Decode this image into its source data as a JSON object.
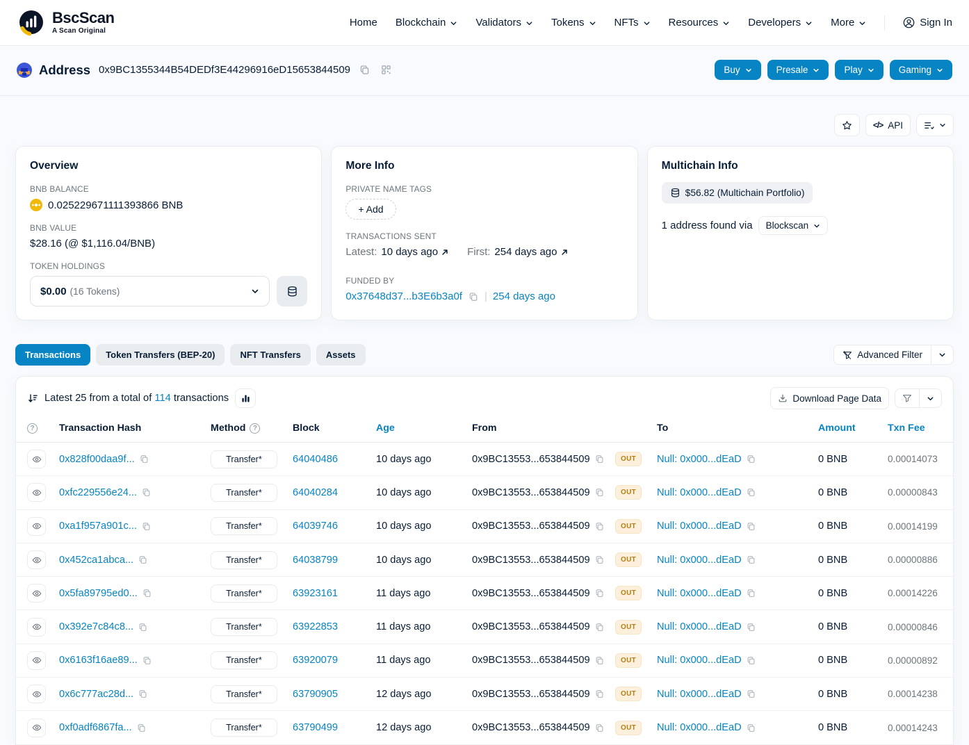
{
  "nav": {
    "brand_name": "BscScan",
    "brand_tagline": "A Scan Original",
    "items": [
      {
        "label": "Home",
        "dropdown": false
      },
      {
        "label": "Blockchain",
        "dropdown": true
      },
      {
        "label": "Validators",
        "dropdown": true
      },
      {
        "label": "Tokens",
        "dropdown": true
      },
      {
        "label": "NFTs",
        "dropdown": true
      },
      {
        "label": "Resources",
        "dropdown": true
      },
      {
        "label": "Developers",
        "dropdown": true
      },
      {
        "label": "More",
        "dropdown": true
      }
    ],
    "sign_in_label": "Sign In"
  },
  "header": {
    "entity_label": "Address",
    "address": "0x9BC1355344B54DEDf3E44296916eD15653844509",
    "action_buttons": [
      "Buy",
      "Presale",
      "Play",
      "Gaming"
    ]
  },
  "page_tools": {
    "api_label": "API"
  },
  "overview_card": {
    "title": "Overview",
    "bnb_balance_label": "BNB BALANCE",
    "bnb_balance": "0.025229671111393866 BNB",
    "bnb_value_label": "BNB VALUE",
    "bnb_value": "$28.16 (@ $1,116.04/BNB)",
    "token_holdings_label": "TOKEN HOLDINGS",
    "token_holdings_value": "$0.00",
    "token_holdings_count": "(16 Tokens)"
  },
  "more_info_card": {
    "title": "More Info",
    "private_tags_label": "PRIVATE NAME TAGS",
    "add_button": "+ Add",
    "transactions_sent_label": "TRANSACTIONS SENT",
    "latest_label": "Latest:",
    "latest_value": "10 days ago",
    "first_label": "First:",
    "first_value": "254 days ago",
    "funded_by_label": "FUNDED BY",
    "funded_by_address": "0x37648d37...b3E6b3a0f",
    "funded_divider": "|",
    "funded_age": "254 days ago"
  },
  "multichain_card": {
    "title": "Multichain Info",
    "portfolio_badge": "$56.82 (Multichain Portfolio)",
    "found_text": "1 address found via",
    "provider": "Blockscan"
  },
  "tabs": [
    {
      "label": "Transactions",
      "active": true
    },
    {
      "label": "Token Transfers (BEP-20)",
      "active": false
    },
    {
      "label": "NFT Transfers",
      "active": false
    },
    {
      "label": "Assets",
      "active": false
    }
  ],
  "filter": {
    "advanced_filter_label": "Advanced Filter"
  },
  "table": {
    "summary_prefix": "Latest 25 from a total of ",
    "summary_count": "114",
    "summary_suffix": " transactions",
    "download_label": "Download Page Data",
    "columns": [
      "Transaction Hash",
      "Method",
      "Block",
      "Age",
      "From",
      "To",
      "Amount",
      "Txn Fee"
    ],
    "rows": [
      {
        "hash": "0x828f00daa9f...",
        "method": "Transfer*",
        "block": "64040486",
        "age": "10 days ago",
        "from": "0x9BC13553...653844509",
        "direction": "OUT",
        "to": "Null: 0x000...dEaD",
        "amount": "0 BNB",
        "fee": "0.00014073"
      },
      {
        "hash": "0xfc229556e24...",
        "method": "Transfer*",
        "block": "64040284",
        "age": "10 days ago",
        "from": "0x9BC13553...653844509",
        "direction": "OUT",
        "to": "Null: 0x000...dEaD",
        "amount": "0 BNB",
        "fee": "0.00000843"
      },
      {
        "hash": "0xa1f957a901c...",
        "method": "Transfer*",
        "block": "64039746",
        "age": "10 days ago",
        "from": "0x9BC13553...653844509",
        "direction": "OUT",
        "to": "Null: 0x000...dEaD",
        "amount": "0 BNB",
        "fee": "0.00014199"
      },
      {
        "hash": "0x452ca1abca...",
        "method": "Transfer*",
        "block": "64038799",
        "age": "10 days ago",
        "from": "0x9BC13553...653844509",
        "direction": "OUT",
        "to": "Null: 0x000...dEaD",
        "amount": "0 BNB",
        "fee": "0.00000886"
      },
      {
        "hash": "0x5fa89795ed0...",
        "method": "Transfer*",
        "block": "63923161",
        "age": "11 days ago",
        "from": "0x9BC13553...653844509",
        "direction": "OUT",
        "to": "Null: 0x000...dEaD",
        "amount": "0 BNB",
        "fee": "0.00014226"
      },
      {
        "hash": "0x392e7c84c8...",
        "method": "Transfer*",
        "block": "63922853",
        "age": "11 days ago",
        "from": "0x9BC13553...653844509",
        "direction": "OUT",
        "to": "Null: 0x000...dEaD",
        "amount": "0 BNB",
        "fee": "0.00000846"
      },
      {
        "hash": "0x6163f16ae89...",
        "method": "Transfer*",
        "block": "63920079",
        "age": "11 days ago",
        "from": "0x9BC13553...653844509",
        "direction": "OUT",
        "to": "Null: 0x000...dEaD",
        "amount": "0 BNB",
        "fee": "0.00000892"
      },
      {
        "hash": "0x6c777ac28d...",
        "method": "Transfer*",
        "block": "63790905",
        "age": "12 days ago",
        "from": "0x9BC13553...653844509",
        "direction": "OUT",
        "to": "Null: 0x000...dEaD",
        "amount": "0 BNB",
        "fee": "0.00014238"
      },
      {
        "hash": "0xf0adf6867fa...",
        "method": "Transfer*",
        "block": "63790499",
        "age": "12 days ago",
        "from": "0x9BC13553...653844509",
        "direction": "OUT",
        "to": "Null: 0x000...dEaD",
        "amount": "0 BNB",
        "fee": "0.00014243"
      }
    ]
  },
  "colors": {
    "brand_blue": "#0784c3",
    "bnb_yellow": "#f0b90b",
    "out_badge_bg": "#fcf0dc",
    "out_badge_text": "#b47d11"
  }
}
